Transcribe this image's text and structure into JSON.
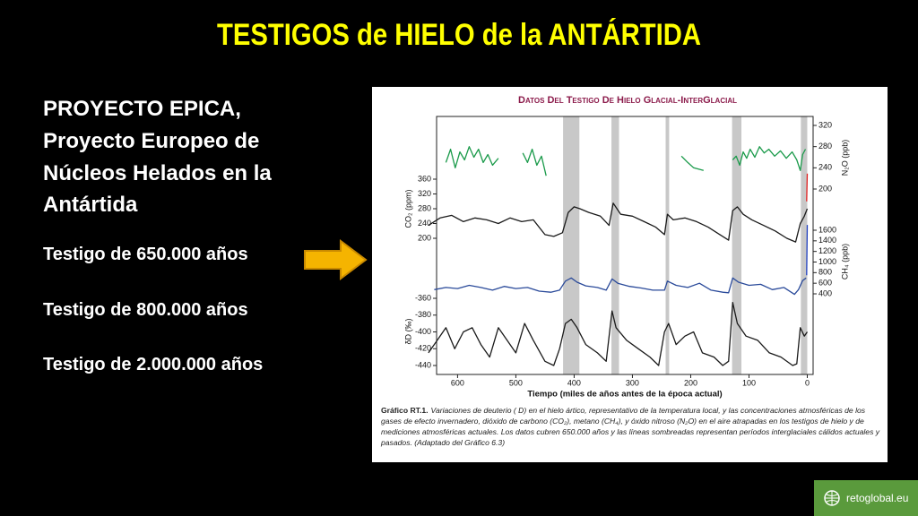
{
  "slide": {
    "title": "TESTIGOS de HIELO de la ANTÁRTIDA",
    "project": [
      "PROYECTO EPICA,",
      "Proyecto Europeo de",
      "Núcleos Helados en la",
      "Antártida"
    ],
    "items": [
      "Testigo de 650.000 años",
      "Testigo de 800.000 años",
      "Testigo de 2.000.000 años"
    ],
    "footer": "retoglobal.eu"
  },
  "chart_data": {
    "type": "line",
    "title": "Datos Del Testigo De Hielo Glacial-InterGlacial",
    "xlabel": "Tiempo (miles de años antes de la época actual)",
    "xlim": [
      636,
      -10
    ],
    "xticks": [
      600,
      500,
      400,
      300,
      200,
      100,
      0
    ],
    "shaded_periods": [
      [
        419,
        391
      ],
      [
        336,
        323
      ],
      [
        243,
        237
      ],
      [
        129,
        113
      ],
      [
        11,
        0
      ]
    ],
    "axes": [
      {
        "label": "N₂O (ppb)",
        "side": "right",
        "ylim": [
          200,
          320
        ],
        "yticks": [
          200,
          240,
          280,
          320
        ]
      },
      {
        "label": "CO₂ (ppm)",
        "side": "left",
        "ylim": [
          200,
          360
        ],
        "yticks": [
          200,
          240,
          280,
          320,
          360
        ]
      },
      {
        "label": "CH₄ (ppb)",
        "side": "right",
        "ylim": [
          400,
          1600
        ],
        "yticks": [
          400,
          600,
          800,
          1000,
          1200,
          1400,
          1600
        ]
      },
      {
        "label": "δD (‰)",
        "side": "left",
        "ylim": [
          -440,
          -360
        ],
        "yticks": [
          -440,
          -420,
          -400,
          -380,
          -360
        ]
      }
    ],
    "series": [
      {
        "axis": 0,
        "color": "#1a9a4a",
        "x": [
          620,
          612,
          604,
          596,
          588,
          580,
          572,
          564,
          556,
          548,
          540,
          530,
          510,
          488,
          480,
          472,
          464,
          456,
          448,
          330,
          216,
          205,
          195,
          178,
          160,
          128,
          122,
          116,
          110,
          104,
          98,
          90,
          82,
          74,
          66,
          56,
          46,
          36,
          26,
          18,
          12,
          8,
          3
        ],
        "values": [
          250,
          275,
          240,
          270,
          255,
          280,
          260,
          275,
          250,
          265,
          245,
          258,
          null,
          268,
          250,
          275,
          245,
          262,
          225,
          null,
          262,
          250,
          240,
          235,
          null,
          255,
          262,
          245,
          270,
          258,
          275,
          260,
          280,
          268,
          275,
          262,
          272,
          258,
          270,
          255,
          235,
          265,
          275
        ]
      },
      {
        "axis": 1,
        "color": "#1a1a1a",
        "x": [
          650,
          630,
          610,
          590,
          570,
          550,
          530,
          510,
          490,
          470,
          450,
          435,
          420,
          410,
          400,
          390,
          375,
          355,
          340,
          333,
          320,
          300,
          280,
          260,
          245,
          240,
          230,
          210,
          190,
          170,
          150,
          135,
          128,
          120,
          110,
          95,
          75,
          55,
          35,
          20,
          12,
          5,
          0
        ],
        "values": [
          235,
          255,
          262,
          245,
          255,
          250,
          240,
          255,
          245,
          250,
          210,
          205,
          215,
          270,
          285,
          280,
          270,
          260,
          235,
          295,
          265,
          260,
          245,
          230,
          210,
          265,
          250,
          255,
          245,
          230,
          210,
          195,
          275,
          285,
          265,
          250,
          235,
          220,
          200,
          190,
          240,
          260,
          280
        ]
      },
      {
        "axis": 1,
        "color": "#e02020",
        "x": [
          1,
          0
        ],
        "values": [
          300,
          375
        ]
      },
      {
        "axis": 2,
        "color": "#2a4a9a",
        "x": [
          640,
          620,
          600,
          580,
          560,
          540,
          520,
          500,
          480,
          460,
          440,
          425,
          415,
          405,
          395,
          380,
          360,
          345,
          335,
          325,
          305,
          285,
          265,
          245,
          240,
          225,
          205,
          185,
          165,
          145,
          135,
          128,
          118,
          100,
          80,
          60,
          40,
          22,
          15,
          8,
          2
        ],
        "values": [
          480,
          520,
          500,
          560,
          520,
          470,
          540,
          500,
          520,
          450,
          430,
          470,
          640,
          700,
          620,
          550,
          520,
          470,
          680,
          600,
          540,
          510,
          470,
          470,
          640,
          560,
          520,
          600,
          470,
          430,
          420,
          700,
          620,
          560,
          580,
          480,
          520,
          390,
          480,
          650,
          700
        ]
      },
      {
        "axis": 2,
        "color": "#2040c0",
        "x": [
          1,
          0
        ],
        "values": [
          750,
          1700
        ]
      },
      {
        "axis": 3,
        "color": "#1a1a1a",
        "x": [
          650,
          635,
          620,
          605,
          590,
          575,
          560,
          545,
          530,
          515,
          500,
          485,
          470,
          450,
          435,
          425,
          415,
          405,
          395,
          380,
          360,
          345,
          335,
          328,
          310,
          290,
          270,
          255,
          245,
          238,
          225,
          210,
          195,
          180,
          160,
          145,
          135,
          128,
          120,
          105,
          85,
          65,
          45,
          25,
          18,
          12,
          5,
          0
        ],
        "values": [
          -425,
          -410,
          -395,
          -420,
          -400,
          -395,
          -415,
          -430,
          -395,
          -410,
          -425,
          -390,
          -410,
          -435,
          -440,
          -420,
          -390,
          -385,
          -395,
          -415,
          -425,
          -435,
          -375,
          -395,
          -410,
          -420,
          -430,
          -440,
          -400,
          -390,
          -415,
          -405,
          -400,
          -425,
          -430,
          -440,
          -435,
          -365,
          -390,
          -405,
          -410,
          -425,
          -430,
          -440,
          -438,
          -395,
          -405,
          -400
        ]
      }
    ],
    "caption_label": "Gráfico RT.1.",
    "caption": "Variaciones de deuterio ( D) en el hielo ártico, representativo de la temperatura local, y las concentraciones atmosféricas de los gases de efecto invernadero, dióxido de carbono (CO₂), metano (CH₄), y óxido nitroso (N₂O) en el aire atrapadas en los testigos de hielo y de mediciones atmosféricas actuales. Los datos cubren 650.000 años y las líneas sombreadas representan períodos interglaciales cálidos actuales y pasados. (Adaptado del Gráfico 6.3)"
  }
}
